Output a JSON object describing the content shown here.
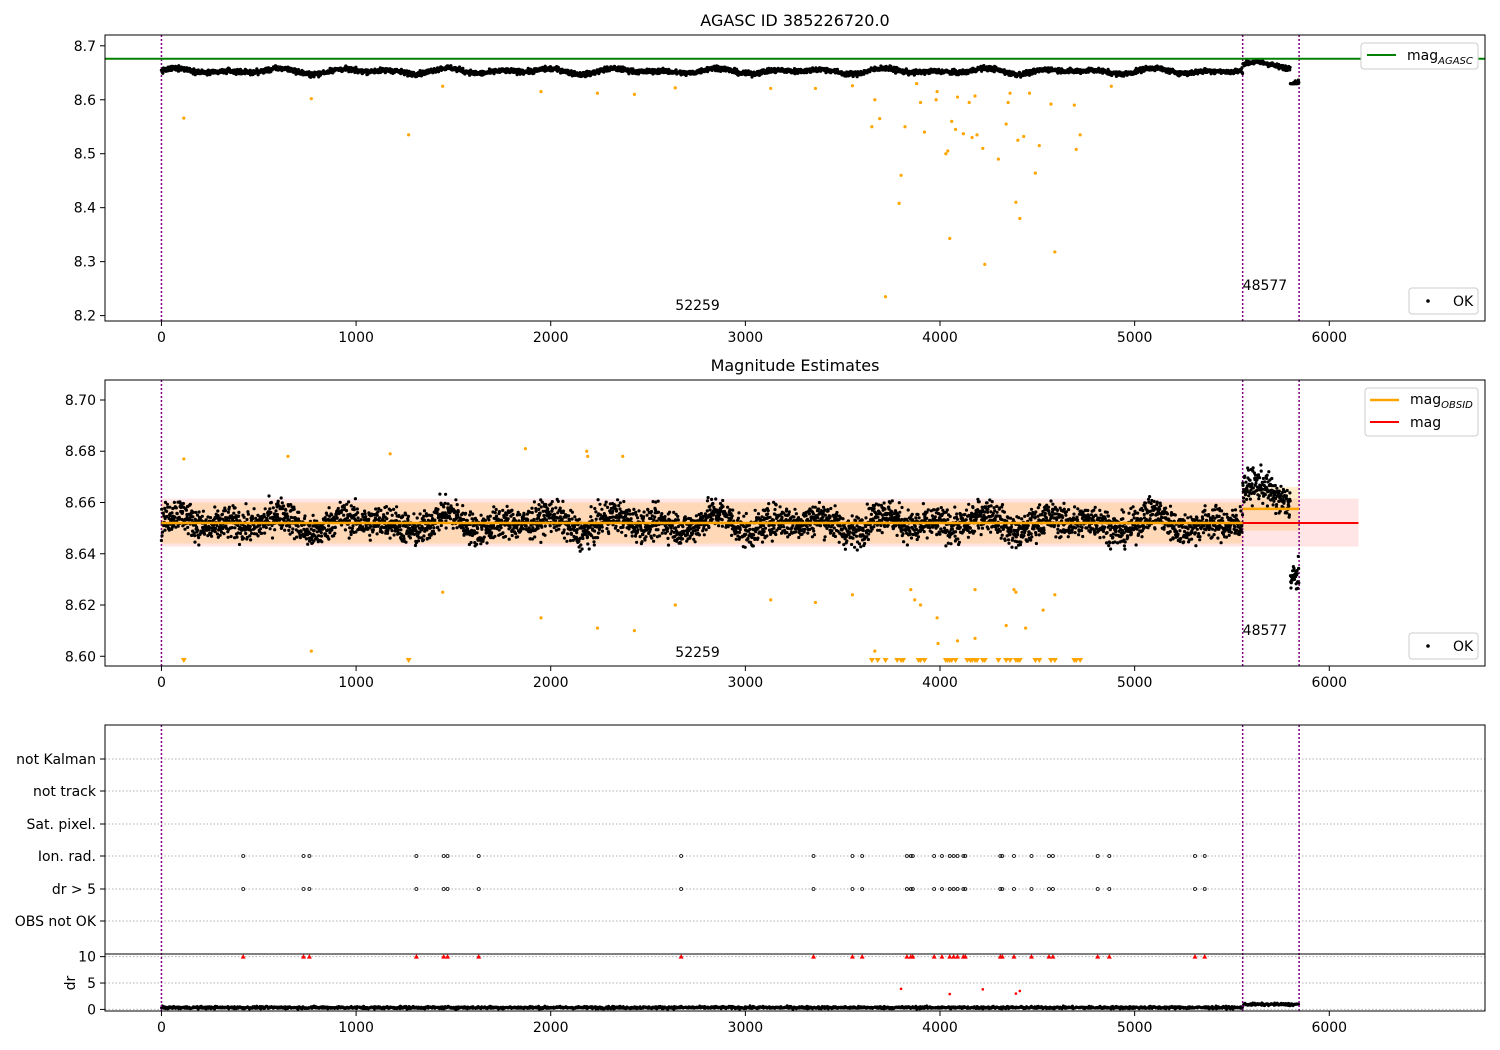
{
  "figure": {
    "panels": [
      {
        "id": "p1",
        "title": "AGASC ID 385226720.0",
        "legend_lines": [
          {
            "label": "mag",
            "sub": "AGASC",
            "color": "#008000"
          }
        ],
        "legend_points": [
          {
            "label": "OK",
            "color": "#000000"
          }
        ],
        "annotations": [
          {
            "text": "52259",
            "x": 2640,
            "y": 8.21
          },
          {
            "text": "48577",
            "x": 5555,
            "y": 8.247
          }
        ]
      },
      {
        "id": "p2",
        "title": "Magnitude Estimates",
        "legend_lines": [
          {
            "label": "mag",
            "sub": "OBSID",
            "color": "#ffa500"
          },
          {
            "label": "mag",
            "sub": "",
            "color": "#ff0000"
          }
        ],
        "legend_points": [
          {
            "label": "OK",
            "color": "#000000"
          }
        ],
        "annotations": [
          {
            "text": "52259",
            "x": 2640,
            "y": 8.5997
          },
          {
            "text": "48577",
            "x": 5555,
            "y": 8.6083
          }
        ]
      },
      {
        "id": "p3",
        "title": ""
      }
    ]
  },
  "chart_data": [
    {
      "type": "scatter",
      "title": "AGASC ID 385226720.0",
      "xlabel": "",
      "ylabel": "",
      "xlim": [
        -290,
        6800
      ],
      "ylim": [
        8.19,
        8.72
      ],
      "xticks": [
        0,
        1000,
        2000,
        3000,
        4000,
        5000,
        6000
      ],
      "yticks": [
        8.2,
        8.3,
        8.4,
        8.5,
        8.6,
        8.7
      ],
      "hlines": [
        {
          "name": "mag_AGASC",
          "y": 8.676,
          "x_range": [
            -290,
            6800
          ],
          "color": "#008000"
        }
      ],
      "vlines": [
        0,
        5555,
        5845
      ],
      "series": [
        {
          "name": "OK",
          "color": "#000000",
          "note": "dense points, ~5850 samples",
          "y_center": 8.653,
          "y_range": [
            8.63,
            8.688
          ]
        },
        {
          "name": "",
          "color": "#ffa500",
          "points": [
            [
              115,
              8.566
            ],
            [
              770,
              8.602
            ],
            [
              1270,
              8.535
            ],
            [
              1445,
              8.625
            ],
            [
              1950,
              8.615
            ],
            [
              2240,
              8.612
            ],
            [
              2430,
              8.61
            ],
            [
              2640,
              8.622
            ],
            [
              3130,
              8.621
            ],
            [
              3360,
              8.621
            ],
            [
              3550,
              8.626
            ],
            [
              3650,
              8.55
            ],
            [
              3665,
              8.6
            ],
            [
              3690,
              8.565
            ],
            [
              3720,
              8.235
            ],
            [
              3790,
              8.408
            ],
            [
              3800,
              8.46
            ],
            [
              3820,
              8.55
            ],
            [
              3880,
              8.63
            ],
            [
              3900,
              8.595
            ],
            [
              3920,
              8.54
            ],
            [
              3980,
              8.6
            ],
            [
              3985,
              8.615
            ],
            [
              4030,
              8.5
            ],
            [
              4040,
              8.505
            ],
            [
              4050,
              8.343
            ],
            [
              4060,
              8.56
            ],
            [
              4080,
              8.545
            ],
            [
              4090,
              8.605
            ],
            [
              4120,
              8.537
            ],
            [
              4150,
              8.595
            ],
            [
              4165,
              8.53
            ],
            [
              4180,
              8.607
            ],
            [
              4190,
              8.535
            ],
            [
              4220,
              8.51
            ],
            [
              4230,
              8.295
            ],
            [
              4300,
              8.49
            ],
            [
              4340,
              8.555
            ],
            [
              4350,
              8.595
            ],
            [
              4360,
              8.612
            ],
            [
              4390,
              8.41
            ],
            [
              4400,
              8.525
            ],
            [
              4410,
              8.38
            ],
            [
              4430,
              8.532
            ],
            [
              4460,
              8.612
            ],
            [
              4490,
              8.464
            ],
            [
              4510,
              8.515
            ],
            [
              4570,
              8.592
            ],
            [
              4590,
              8.318
            ],
            [
              4690,
              8.59
            ],
            [
              4700,
              8.508
            ],
            [
              4720,
              8.535
            ],
            [
              4880,
              8.625
            ]
          ]
        }
      ]
    },
    {
      "type": "scatter",
      "title": "Magnitude Estimates",
      "xlabel": "",
      "ylabel": "",
      "xlim": [
        -290,
        6800
      ],
      "ylim": [
        8.5962,
        8.7078
      ],
      "xticks": [
        0,
        1000,
        2000,
        3000,
        4000,
        5000,
        6000
      ],
      "yticks": [
        8.6,
        8.62,
        8.64,
        8.66,
        8.68,
        8.7
      ],
      "mag_line": {
        "name": "mag",
        "y": 8.652,
        "x_range": [
          0,
          6150
        ],
        "color": "#ff0000",
        "band": [
          8.6428,
          8.6615
        ]
      },
      "obsid_segments": [
        {
          "name": "mag_OBSID",
          "y": 8.652,
          "x_range": [
            0,
            5555
          ],
          "band": [
            8.644,
            8.66
          ]
        },
        {
          "name": "mag_OBSID",
          "y": 8.6575,
          "x_range": [
            5555,
            5845
          ],
          "band": [
            8.649,
            8.666
          ]
        }
      ],
      "vlines": [
        0,
        5555,
        5845
      ],
      "series": [
        {
          "name": "OK",
          "color": "#000000",
          "note": "dense points, ~5850 samples",
          "y_center": 8.652,
          "y_range": [
            8.626,
            8.687
          ]
        },
        {
          "name": "",
          "color": "#ffa500",
          "points": [
            [
              115,
              8.677
            ],
            [
              650,
              8.678
            ],
            [
              770,
              8.602
            ],
            [
              1175,
              8.679
            ],
            [
              1445,
              8.625
            ],
            [
              1870,
              8.681
            ],
            [
              1950,
              8.615
            ],
            [
              2185,
              8.68
            ],
            [
              2190,
              8.678
            ],
            [
              2240,
              8.611
            ],
            [
              2370,
              8.678
            ],
            [
              2430,
              8.61
            ],
            [
              2640,
              8.62
            ],
            [
              3130,
              8.622
            ],
            [
              3360,
              8.621
            ],
            [
              3550,
              8.624
            ],
            [
              3665,
              8.602
            ],
            [
              3850,
              8.626
            ],
            [
              3870,
              8.622
            ],
            [
              3900,
              8.62
            ],
            [
              3985,
              8.615
            ],
            [
              3990,
              8.605
            ],
            [
              4090,
              8.606
            ],
            [
              4180,
              8.607
            ],
            [
              4180,
              8.626
            ],
            [
              4340,
              8.612
            ],
            [
              4380,
              8.626
            ],
            [
              4390,
              8.625
            ],
            [
              4440,
              8.611
            ],
            [
              4530,
              8.618
            ],
            [
              4590,
              8.624
            ]
          ]
        },
        {
          "name": "below range",
          "color": "#ffa500",
          "marker": "triangle-down",
          "x": [
            115,
            1270,
            3650,
            3680,
            3720,
            3780,
            3800,
            3810,
            3890,
            3900,
            3920,
            4030,
            4040,
            4050,
            4060,
            4080,
            4140,
            4155,
            4165,
            4180,
            4190,
            4220,
            4230,
            4300,
            4340,
            4360,
            4390,
            4400,
            4410,
            4490,
            4510,
            4570,
            4590,
            4690,
            4700,
            4720
          ]
        }
      ]
    },
    {
      "type": "scatter",
      "title": "",
      "xlabel": "",
      "ylabel": "dr",
      "xlim": [
        -290,
        6800
      ],
      "xticks": [
        0,
        1000,
        2000,
        3000,
        4000,
        5000,
        6000
      ],
      "flag_rows": [
        "not Kalman",
        "not track",
        "Sat. pixel.",
        "Ion. rad.",
        "dr > 5",
        "OBS not OK"
      ],
      "flags": {
        "Ion. rad.": [
          420,
          730,
          760,
          1310,
          1450,
          1470,
          1630,
          2670,
          3350,
          3550,
          3600,
          3830,
          3850,
          3860,
          3970,
          4010,
          4050,
          4070,
          4090,
          4120,
          4130,
          4310,
          4320,
          4380,
          4470,
          4560,
          4580,
          4810,
          4870,
          5310,
          5360
        ],
        "dr > 5": [
          420,
          730,
          760,
          1310,
          1450,
          1470,
          1630,
          2670,
          3350,
          3550,
          3600,
          3830,
          3850,
          3860,
          3970,
          4010,
          4050,
          4070,
          4090,
          4120,
          4130,
          4310,
          4320,
          4380,
          4470,
          4560,
          4580,
          4810,
          4870,
          5310,
          5360
        ]
      },
      "dr_ylim": [
        -0.3,
        10.5
      ],
      "dr_yticks": [
        0,
        5,
        10
      ],
      "dr_series": [
        {
          "name": "dr",
          "color": "#000000",
          "note": "dense points, ~5850 samples",
          "y_range": [
            0,
            1.5
          ]
        },
        {
          "name": "dr high",
          "color": "#ff0000",
          "points": [
            [
              3800,
              3.9
            ],
            [
              4050,
              2.9
            ],
            [
              4220,
              3.8
            ],
            [
              4390,
              3.0
            ],
            [
              4410,
              3.5
            ]
          ]
        },
        {
          "name": "dr clipped",
          "color": "#ff0000",
          "marker": "triangle-up",
          "x": [
            420,
            730,
            760,
            1310,
            1450,
            1470,
            1630,
            2670,
            3350,
            3550,
            3600,
            3830,
            3850,
            3860,
            3970,
            4010,
            4050,
            4070,
            4090,
            4120,
            4130,
            4310,
            4320,
            4380,
            4470,
            4560,
            4580,
            4810,
            4870,
            5310,
            5360
          ]
        }
      ]
    }
  ]
}
